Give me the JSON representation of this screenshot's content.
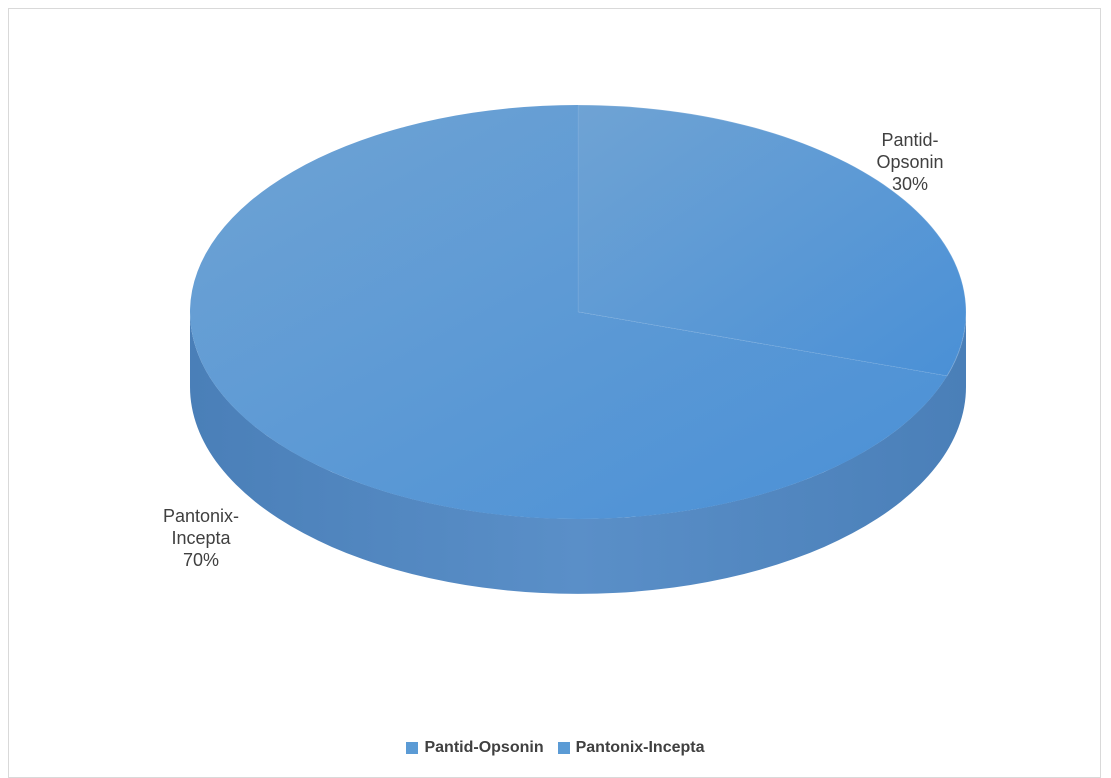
{
  "chart_data": {
    "type": "pie",
    "style": "3d",
    "slices": [
      {
        "name": "Pantid-Opsonin",
        "value": 30,
        "label_lines": [
          "Pantid-",
          "Opsonin",
          "30%"
        ],
        "color": "#5b9bd5"
      },
      {
        "name": "Pantonix-Incepta",
        "value": 70,
        "label_lines": [
          "Pantonix-",
          "Incepta",
          "70%"
        ],
        "color": "#5b9bd5"
      }
    ],
    "legend": {
      "placement": "bottom",
      "items": [
        "Pantid-Opsonin",
        "Pantonix-Incepta"
      ]
    }
  }
}
